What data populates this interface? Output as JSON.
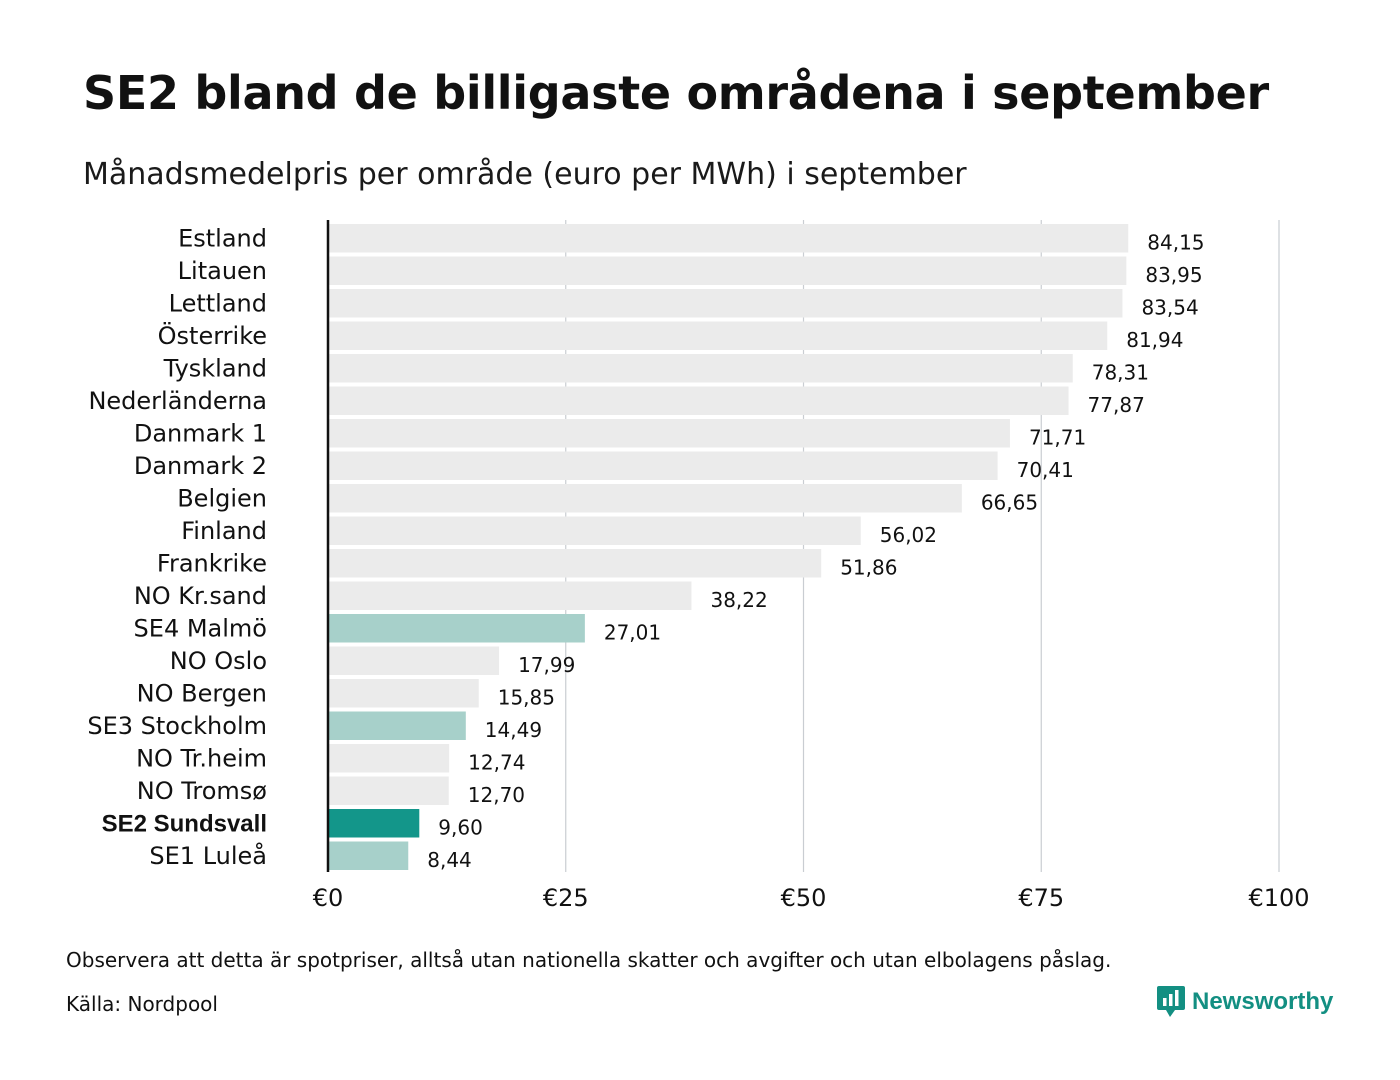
{
  "title": "SE2 bland de billigaste områdena i september",
  "subtitle": "Månadsmedelpris per område (euro per MWh) i september",
  "footnote": "Observera att detta är spotpriser, alltså utan nationella skatter och avgifter och utan elbolagens påslag.",
  "source": "Källa: Nordpool",
  "brand": {
    "name": "Newsworthy",
    "icon": "bar-chart-badge-icon",
    "color": "#138f82"
  },
  "colors": {
    "default": "#ebebeb",
    "swedish": "#a7d0ca",
    "highlight": "#13968a",
    "grid": "#c9cdd2",
    "axis": "#111111"
  },
  "chart_data": {
    "type": "bar",
    "orientation": "horizontal",
    "title": "SE2 bland de billigaste områdena i september",
    "subtitle": "Månadsmedelpris per område (euro per MWh) i september",
    "xlim": [
      0,
      100
    ],
    "xticks": [
      0,
      25,
      50,
      75,
      100
    ],
    "xtick_labels": [
      "€0",
      "€25",
      "€50",
      "€75",
      "€100"
    ],
    "grid": "vertical",
    "categories": [
      "Estland",
      "Litauen",
      "Lettland",
      "Österrike",
      "Tyskland",
      "Nederländerna",
      "Danmark 1",
      "Danmark 2",
      "Belgien",
      "Finland",
      "Frankrike",
      "NO Kr.sand",
      "SE4 Malmö",
      "NO Oslo",
      "NO Bergen",
      "SE3 Stockholm",
      "NO Tr.heim",
      "NO Tromsø",
      "SE2 Sundsvall",
      "SE1 Luleå"
    ],
    "values": [
      84.15,
      83.95,
      83.54,
      81.94,
      78.31,
      77.87,
      71.71,
      70.41,
      66.65,
      56.02,
      51.86,
      38.22,
      27.01,
      17.99,
      15.85,
      14.49,
      12.74,
      12.7,
      9.6,
      8.44
    ],
    "value_labels": [
      "84,15",
      "83,95",
      "83,54",
      "81,94",
      "78,31",
      "77,87",
      "71,71",
      "70,41",
      "66,65",
      "56,02",
      "51,86",
      "38,22",
      "27,01",
      "17,99",
      "15,85",
      "14,49",
      "12,74",
      "12,70",
      "9,60",
      "8,44"
    ],
    "groups": [
      "default",
      "default",
      "default",
      "default",
      "default",
      "default",
      "default",
      "default",
      "default",
      "default",
      "default",
      "default",
      "swedish",
      "default",
      "default",
      "swedish",
      "default",
      "default",
      "highlight",
      "swedish"
    ],
    "highlighted_category": "SE2 Sundsvall"
  }
}
